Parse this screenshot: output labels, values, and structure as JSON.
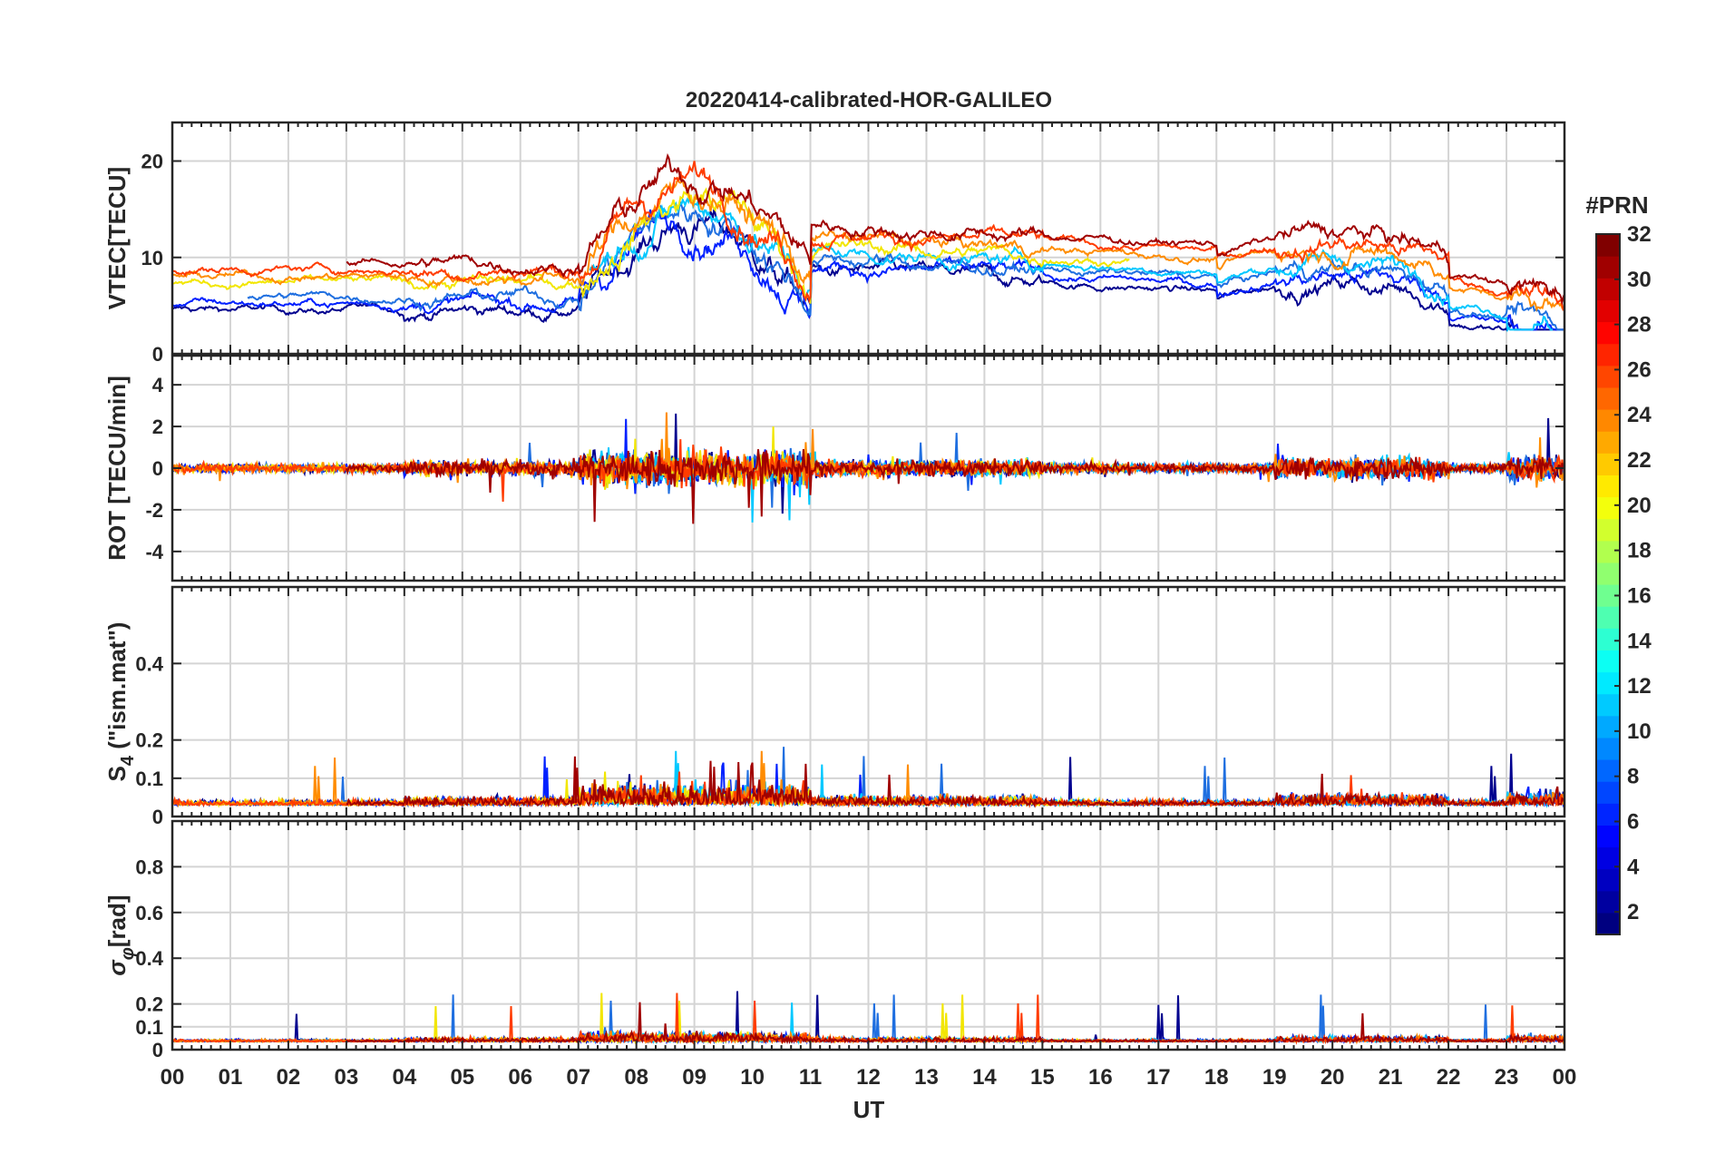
{
  "chart_data": {
    "type": "line",
    "title": "20220414-calibrated-HOR-GALILEO",
    "xlabel": "UT",
    "x_ticks": [
      "00",
      "01",
      "02",
      "03",
      "04",
      "05",
      "06",
      "07",
      "08",
      "09",
      "10",
      "11",
      "12",
      "13",
      "14",
      "15",
      "16",
      "17",
      "18",
      "19",
      "20",
      "21",
      "22",
      "23",
      "00"
    ],
    "xlim": [
      0,
      24
    ],
    "grid": true,
    "panels": [
      {
        "id": "vtec",
        "ylabel": "VTEC[TECU]",
        "ylim": [
          0,
          24
        ],
        "yticks": [
          0,
          10,
          20
        ],
        "ytick_labels": [
          "0",
          "10",
          "20"
        ],
        "baseline": 7,
        "description_series": "per-PRN VTEC time series"
      },
      {
        "id": "rot",
        "ylabel": "ROT [TECU/min]",
        "ylim": [
          -5.4,
          5.4
        ],
        "yticks": [
          -4,
          -2,
          0,
          2,
          4
        ],
        "ytick_labels": [
          "-4",
          "-2",
          "0",
          "2",
          "4"
        ]
      },
      {
        "id": "s4",
        "ylabel_main": "S",
        "ylabel_sub": "4",
        "ylabel_suffix": " (\"ism.mat\")",
        "ylim": [
          0,
          0.6
        ],
        "yticks": [
          0,
          0.1,
          0.2,
          0.4
        ],
        "ytick_labels": [
          "0",
          "0.1",
          "0.2",
          "0.4"
        ]
      },
      {
        "id": "sigma",
        "ylabel_main": "σ",
        "ylabel_sub": "φ",
        "ylabel_suffix": "[rad]",
        "ylim": [
          0,
          1.0
        ],
        "yticks": [
          0,
          0.1,
          0.2,
          0.4,
          0.6,
          0.8
        ],
        "ytick_labels": [
          "0",
          "0.1",
          "0.2",
          "0.4",
          "0.6",
          "0.8"
        ]
      }
    ],
    "series": [
      {
        "prn": 2,
        "color": "#00008f",
        "start": 0.0,
        "end": 24.0
      },
      {
        "prn": 5,
        "color": "#0020ff",
        "start": 0.0,
        "end": 24.0
      },
      {
        "prn": 8,
        "color": "#1f6fe0",
        "start": 1.3,
        "end": 24.0
      },
      {
        "prn": 12,
        "color": "#00c8ff",
        "start": 7.2,
        "end": 23.8
      },
      {
        "prn": 20,
        "color": "#f2e600",
        "start": 0.0,
        "end": 16.5
      },
      {
        "prn": 24,
        "color": "#ff8c00",
        "start": 0.0,
        "end": 24.0
      },
      {
        "prn": 27,
        "color": "#ff3c00",
        "start": 0.0,
        "end": 24.0
      },
      {
        "prn": 31,
        "color": "#a00000",
        "start": 3.0,
        "end": 24.0
      }
    ],
    "colorbar": {
      "title": "#PRN",
      "range": [
        1,
        32
      ],
      "ticks": [
        "2",
        "4",
        "6",
        "8",
        "10",
        "12",
        "14",
        "16",
        "18",
        "20",
        "22",
        "24",
        "26",
        "28",
        "30",
        "32"
      ],
      "colormap": "jet"
    }
  }
}
